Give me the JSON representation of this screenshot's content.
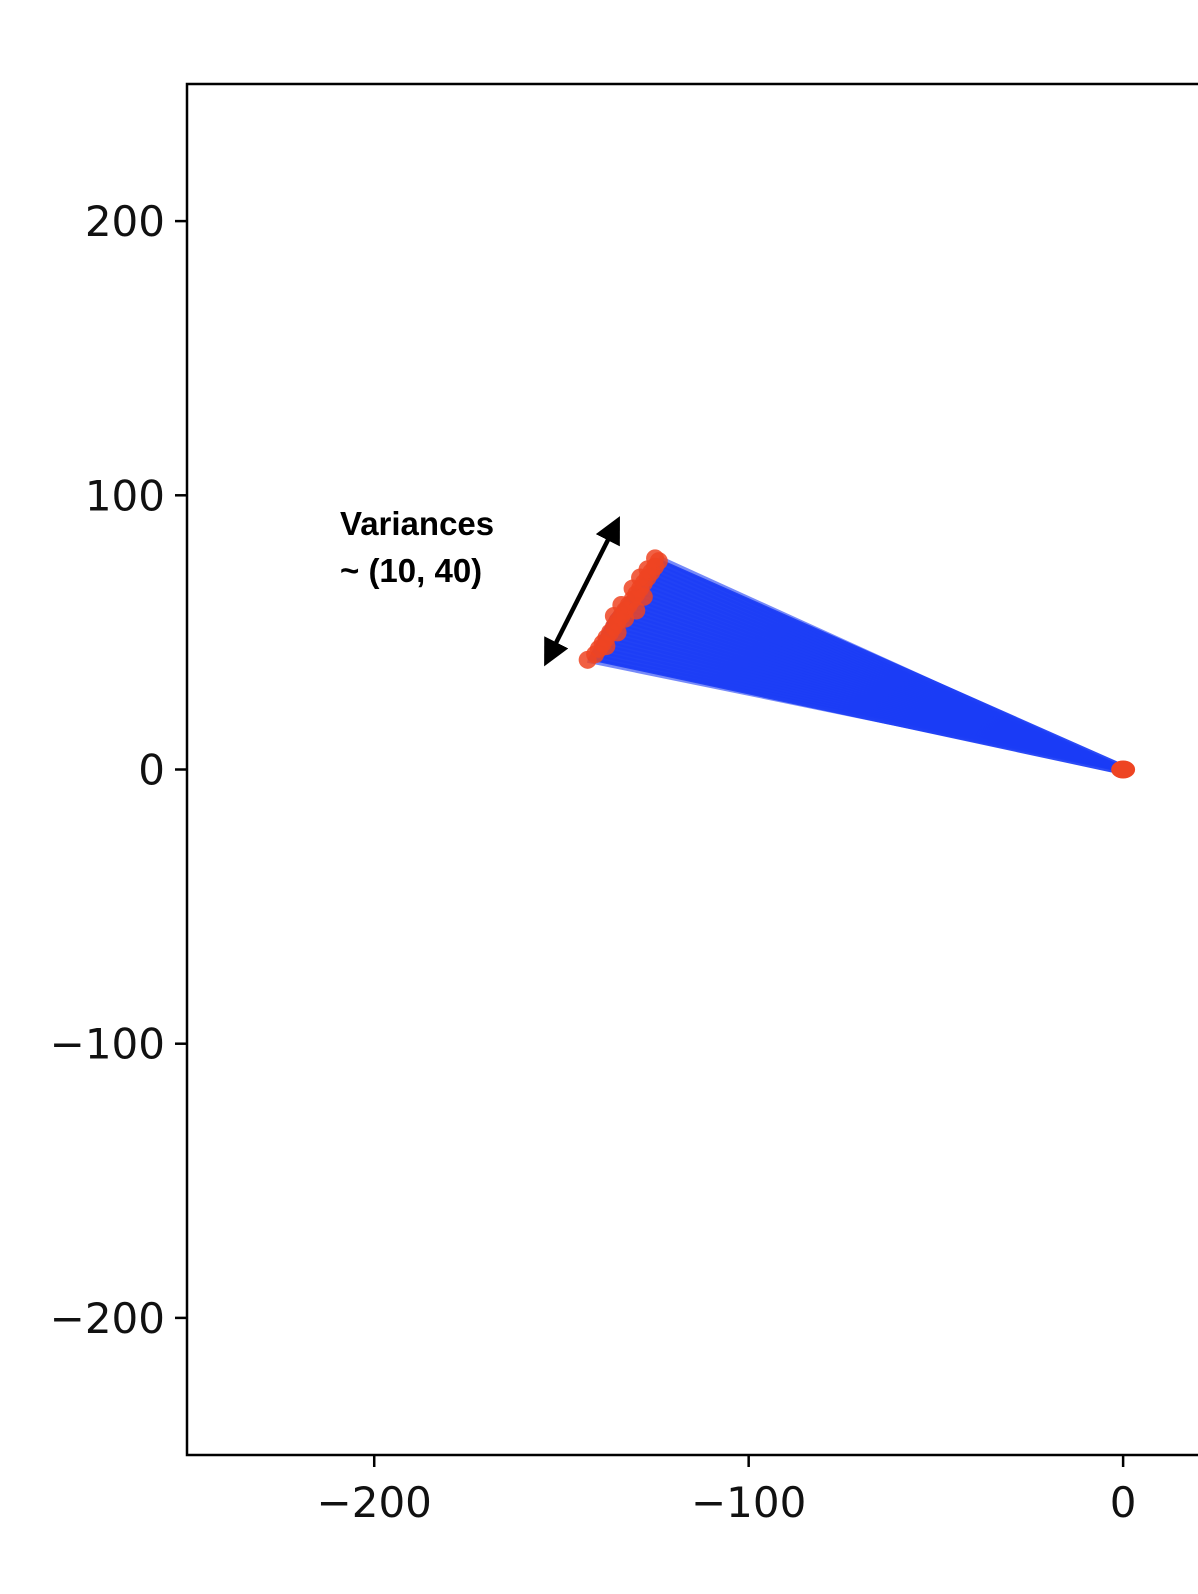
{
  "chart_data": {
    "type": "scatter",
    "title": "",
    "xlabel": "",
    "ylabel": "",
    "xlim": [
      -250,
      20
    ],
    "ylim": [
      -250,
      250
    ],
    "grid": false,
    "x_ticks": [
      {
        "value": -200,
        "label": "−200"
      },
      {
        "value": -100,
        "label": "−100"
      },
      {
        "value": 0,
        "label": "0"
      }
    ],
    "y_ticks": [
      {
        "value": 200,
        "label": "200"
      },
      {
        "value": 100,
        "label": "100"
      },
      {
        "value": 0,
        "label": "0"
      },
      {
        "value": -100,
        "label": "−100"
      },
      {
        "value": -200,
        "label": "−200"
      }
    ],
    "colors": {
      "lines": "#1a3cf5",
      "endpoints": "#ee4422",
      "axes": "#000000",
      "annotation": "#000000"
    },
    "origin_point": [
      0,
      0
    ],
    "fan_lines": {
      "from": [
        0,
        0
      ],
      "count": 30,
      "end_range": {
        "x": [
          -143,
          -124
        ],
        "y": [
          40,
          77
        ]
      }
    },
    "end_cluster": [
      [
        -143,
        40
      ],
      [
        -141,
        42
      ],
      [
        -140,
        44
      ],
      [
        -139,
        46
      ],
      [
        -138,
        48
      ],
      [
        -137,
        50
      ],
      [
        -136,
        52
      ],
      [
        -135,
        54
      ],
      [
        -134,
        56
      ],
      [
        -133,
        58
      ],
      [
        -132,
        60
      ],
      [
        -131,
        62
      ],
      [
        -130,
        64
      ],
      [
        -129,
        66
      ],
      [
        -128,
        68
      ],
      [
        -127,
        70
      ],
      [
        -126,
        72
      ],
      [
        -125,
        74
      ],
      [
        -124,
        76
      ],
      [
        -125,
        77
      ],
      [
        -136,
        56
      ],
      [
        -134,
        60
      ],
      [
        -131,
        66
      ],
      [
        -129,
        70
      ],
      [
        -127,
        73
      ],
      [
        -133,
        55
      ],
      [
        -130,
        58
      ],
      [
        -128,
        63
      ],
      [
        -138,
        45
      ],
      [
        -135,
        50
      ]
    ],
    "annotation": {
      "lines": [
        "Variances",
        "~ (10, 40)"
      ],
      "arrow": {
        "from": [
          -153,
          42
        ],
        "to": [
          -136,
          88
        ]
      }
    }
  }
}
